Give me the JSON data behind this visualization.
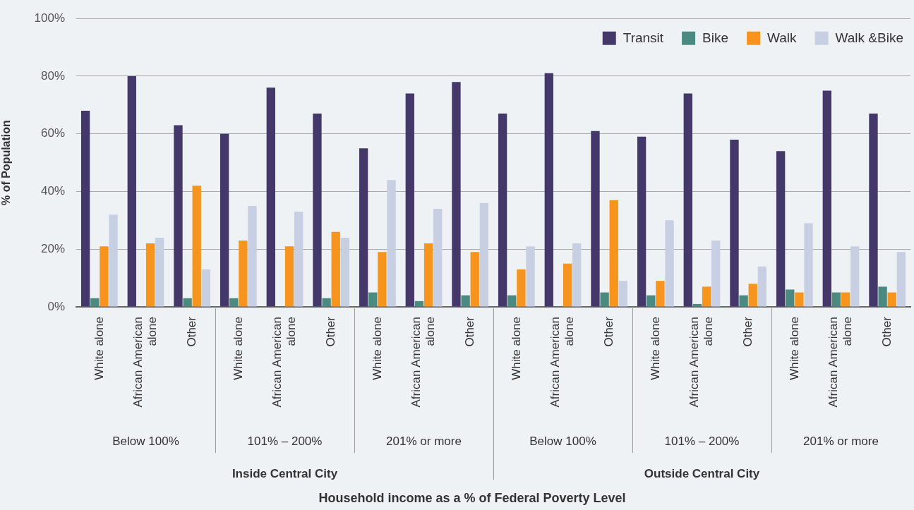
{
  "chart_data": {
    "type": "bar",
    "ylabel": "% of Population",
    "categories": [
      "White alone",
      "African American alone",
      "Other",
      "White alone",
      "African American alone",
      "Other",
      "White alone",
      "African American alone",
      "Other",
      "White alone",
      "African American alone",
      "Other",
      "White alone",
      "African American alone",
      "Other",
      "White alone",
      "African American alone",
      "Other"
    ],
    "series": [
      {
        "name": "Transit",
        "color": "#433869",
        "values": [
          68,
          80,
          63,
          60,
          76,
          67,
          55,
          74,
          78,
          67,
          81,
          61,
          59,
          74,
          58,
          54,
          75,
          67
        ]
      },
      {
        "name": "Bike",
        "color": "#4a8a80",
        "values": [
          3,
          0,
          3,
          3,
          0,
          3,
          5,
          2,
          4,
          4,
          0,
          5,
          4,
          1,
          4,
          6,
          5,
          7
        ]
      },
      {
        "name": "Walk",
        "color": "#f7941d",
        "values": [
          21,
          22,
          42,
          23,
          21,
          26,
          19,
          22,
          19,
          13,
          15,
          37,
          9,
          7,
          8,
          5,
          5,
          5
        ]
      },
      {
        "name": "Walk &Bike",
        "color": "#c8cfe3",
        "values": [
          32,
          24,
          13,
          35,
          33,
          24,
          44,
          34,
          36,
          21,
          22,
          9,
          30,
          23,
          14,
          29,
          21,
          19
        ]
      }
    ],
    "ylim": [
      0,
      100
    ],
    "yticks": [
      {
        "value": 0,
        "label": "0%"
      },
      {
        "value": 20,
        "label": "20%"
      },
      {
        "value": 40,
        "label": "40%"
      },
      {
        "value": 60,
        "label": "60%"
      },
      {
        "value": 80,
        "label": "80%"
      },
      {
        "value": 100,
        "label": "100%"
      }
    ],
    "grid": "y",
    "legend": "top right",
    "annotations": [
      "Below 100%",
      "101% – 200%",
      "201% or more",
      "Below 100%",
      "101% – 200%",
      "201% or more",
      "Inside Central City",
      "Outside Central City",
      "Household income as a % of Federal Poverty Level"
    ]
  }
}
